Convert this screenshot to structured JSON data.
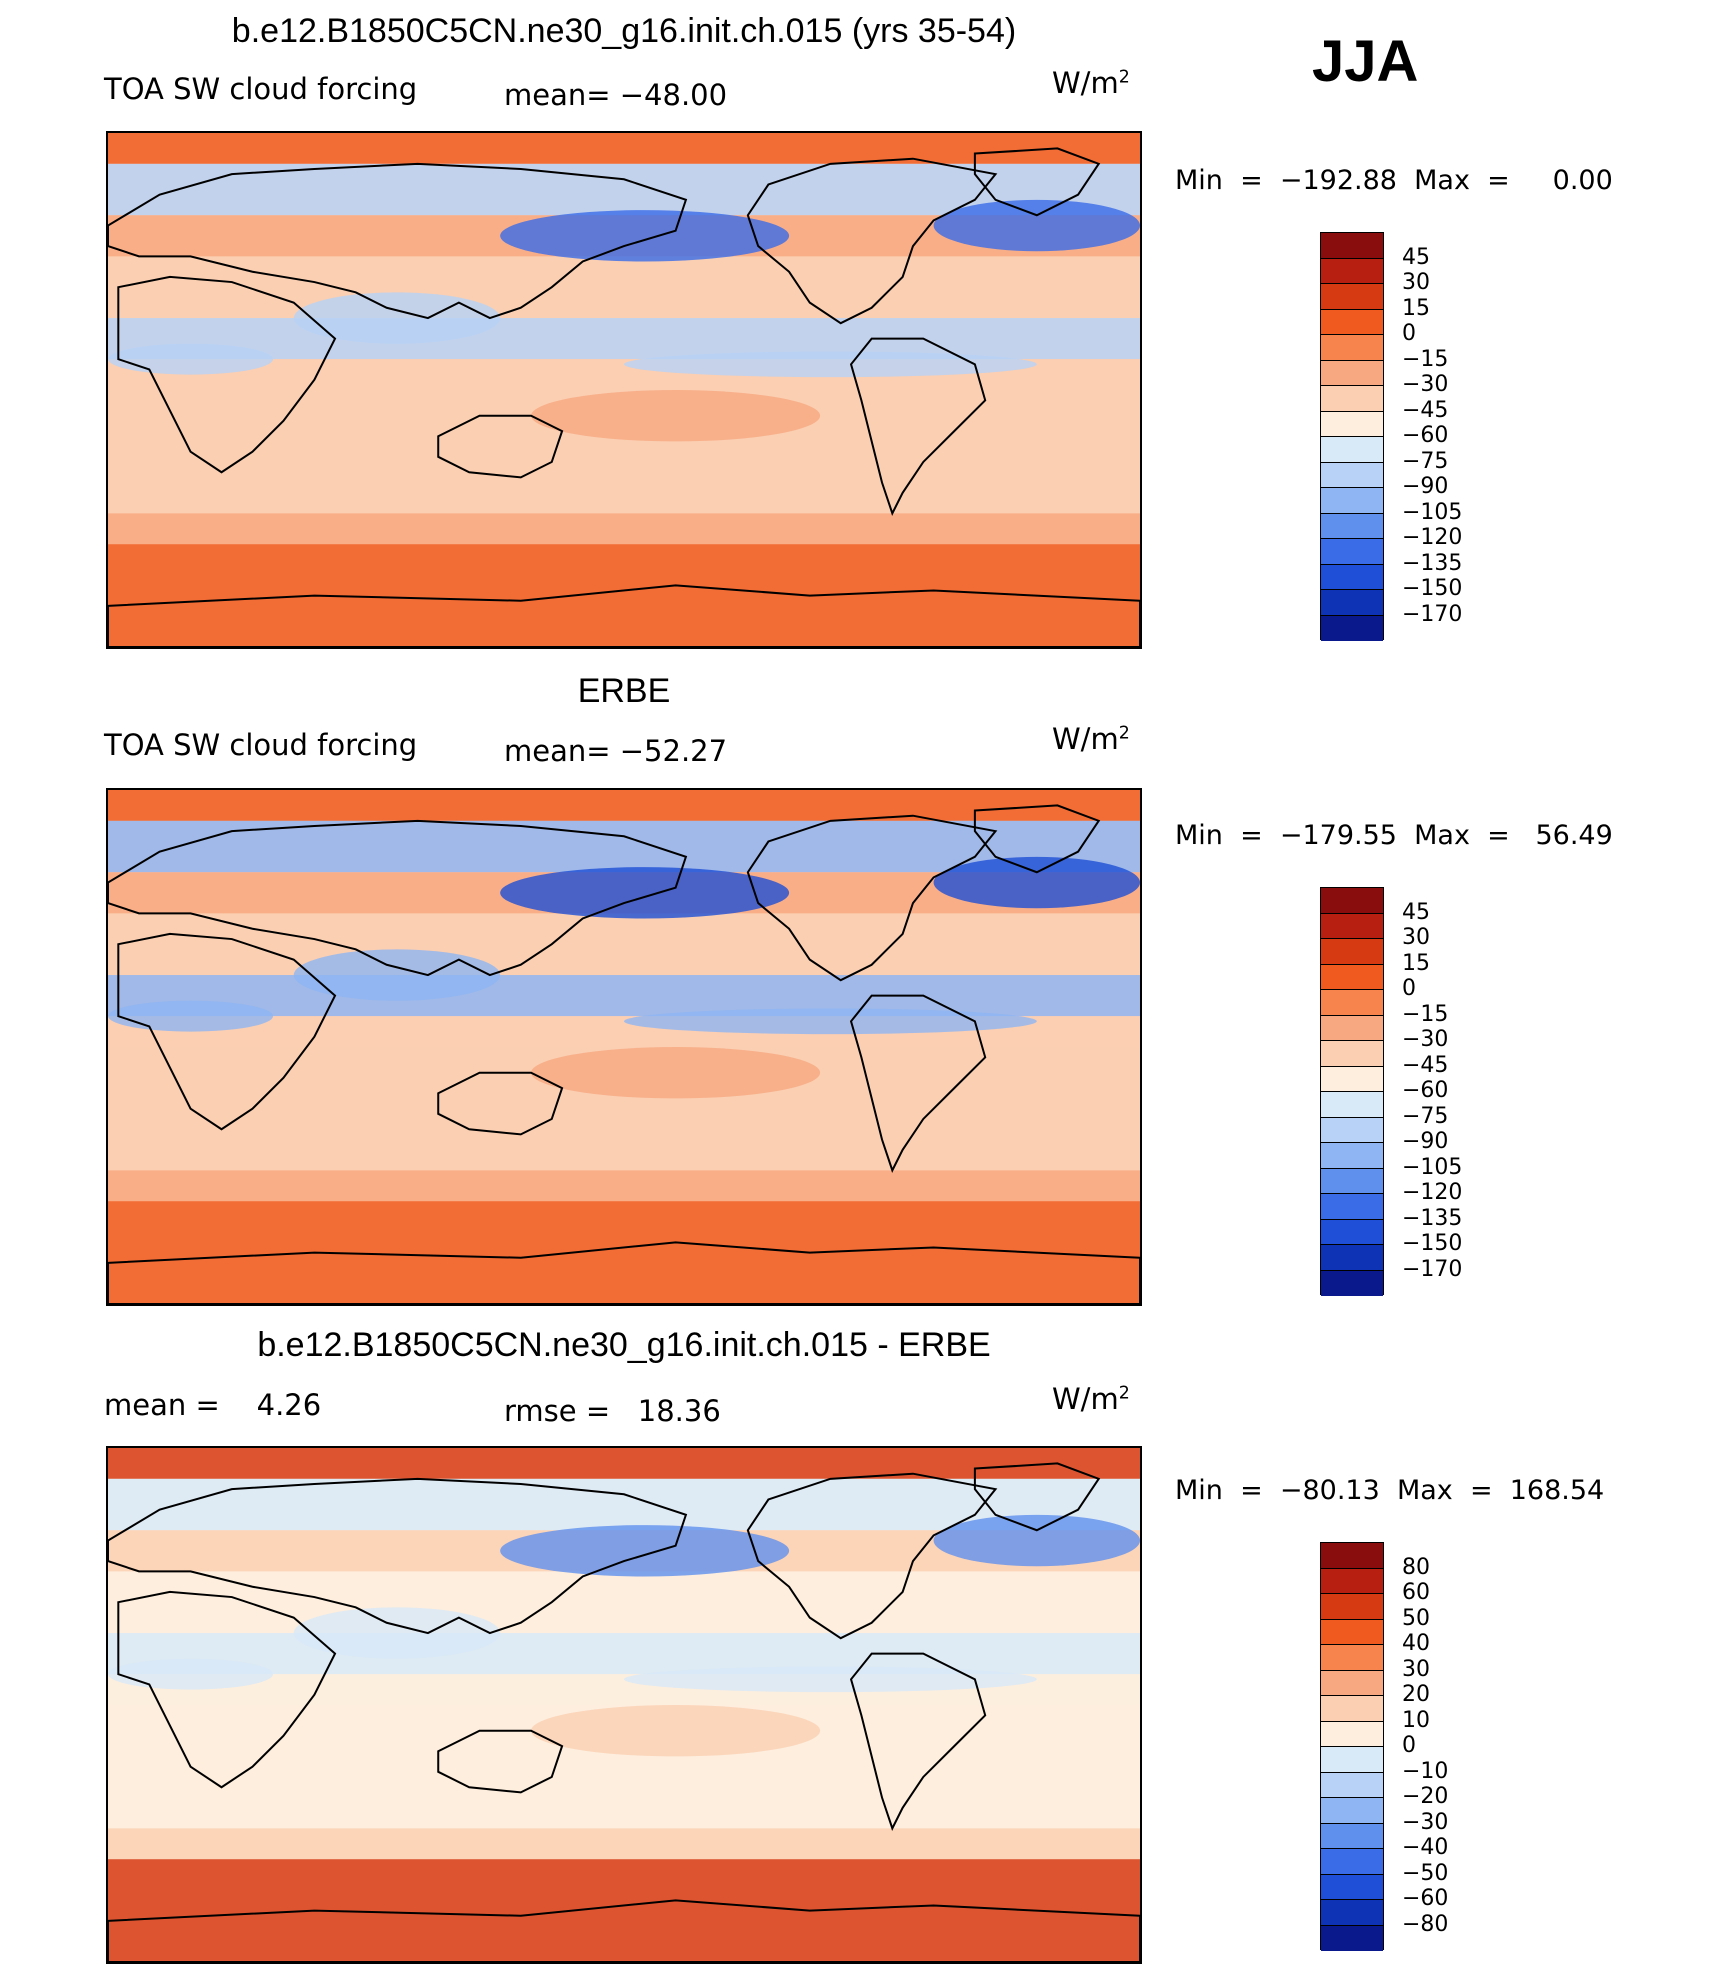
{
  "season": "JJA",
  "panels": [
    {
      "title": "b.e12.B1850C5CN.ne30_g16.init.ch.015 (yrs 35-54)",
      "left_label": "TOA SW cloud forcing",
      "center_label": "mean= −48.00",
      "units": "W/m",
      "units_sup": "2",
      "min_label": "Min  =  −192.88",
      "max_label": "Max  =     0.00",
      "colorbar": {
        "labels": [
          "45",
          "30",
          "15",
          "0",
          "−15",
          "−30",
          "−45",
          "−60",
          "−75",
          "−90",
          "−105",
          "−120",
          "−135",
          "−150",
          "−170"
        ],
        "colors": [
          "#8a0d0d",
          "#b71f10",
          "#d63a12",
          "#f05a1e",
          "#f6844c",
          "#f8a880",
          "#fbcfb2",
          "#fdeede",
          "#d8e9f8",
          "#b7d2f6",
          "#8fb5f2",
          "#5f90ee",
          "#3a6ce8",
          "#1e4fd6",
          "#0f33b5",
          "#0a1a8c"
        ]
      },
      "field": {
        "base": "#fbcfb2",
        "land": "#f8a880",
        "cool": "#b7d2f6",
        "deep": "#3a6ce8",
        "warm": "#f05a1e"
      }
    },
    {
      "title": "ERBE",
      "left_label": "TOA SW cloud forcing",
      "center_label": "mean= −52.27",
      "units": "W/m",
      "units_sup": "2",
      "min_label": "Min  =  −179.55",
      "max_label": "Max  =   56.49",
      "colorbar": {
        "labels": [
          "45",
          "30",
          "15",
          "0",
          "−15",
          "−30",
          "−45",
          "−60",
          "−75",
          "−90",
          "−105",
          "−120",
          "−135",
          "−150",
          "−170"
        ],
        "colors": [
          "#8a0d0d",
          "#b71f10",
          "#d63a12",
          "#f05a1e",
          "#f6844c",
          "#f8a880",
          "#fbcfb2",
          "#fdeede",
          "#d8e9f8",
          "#b7d2f6",
          "#8fb5f2",
          "#5f90ee",
          "#3a6ce8",
          "#1e4fd6",
          "#0f33b5",
          "#0a1a8c"
        ]
      },
      "field": {
        "base": "#fbcfb2",
        "land": "#f8a880",
        "cool": "#8fb5f2",
        "deep": "#1e4fd6",
        "warm": "#f05a1e"
      }
    },
    {
      "title": "b.e12.B1850C5CN.ne30_g16.init.ch.015 - ERBE",
      "left_label": "mean =    4.26",
      "center_label": "rmse =   18.36",
      "units": "W/m",
      "units_sup": "2",
      "min_label": "Min  =  −80.13",
      "max_label": "Max  =  168.54",
      "colorbar": {
        "labels": [
          "80",
          "60",
          "50",
          "40",
          "30",
          "20",
          "10",
          "0",
          "−10",
          "−20",
          "−30",
          "−40",
          "−50",
          "−60",
          "−80"
        ],
        "colors": [
          "#8a0d0d",
          "#b71f10",
          "#d63a12",
          "#f05a1e",
          "#f6844c",
          "#f8a880",
          "#fbcfb2",
          "#fdeede",
          "#d8e9f8",
          "#b7d2f6",
          "#8fb5f2",
          "#5f90ee",
          "#3a6ce8",
          "#1e4fd6",
          "#0f33b5",
          "#0a1a8c"
        ]
      },
      "field": {
        "base": "#fdeede",
        "land": "#fbcfb2",
        "cool": "#d8e9f8",
        "deep": "#5f90ee",
        "warm": "#d63a12"
      }
    }
  ]
}
